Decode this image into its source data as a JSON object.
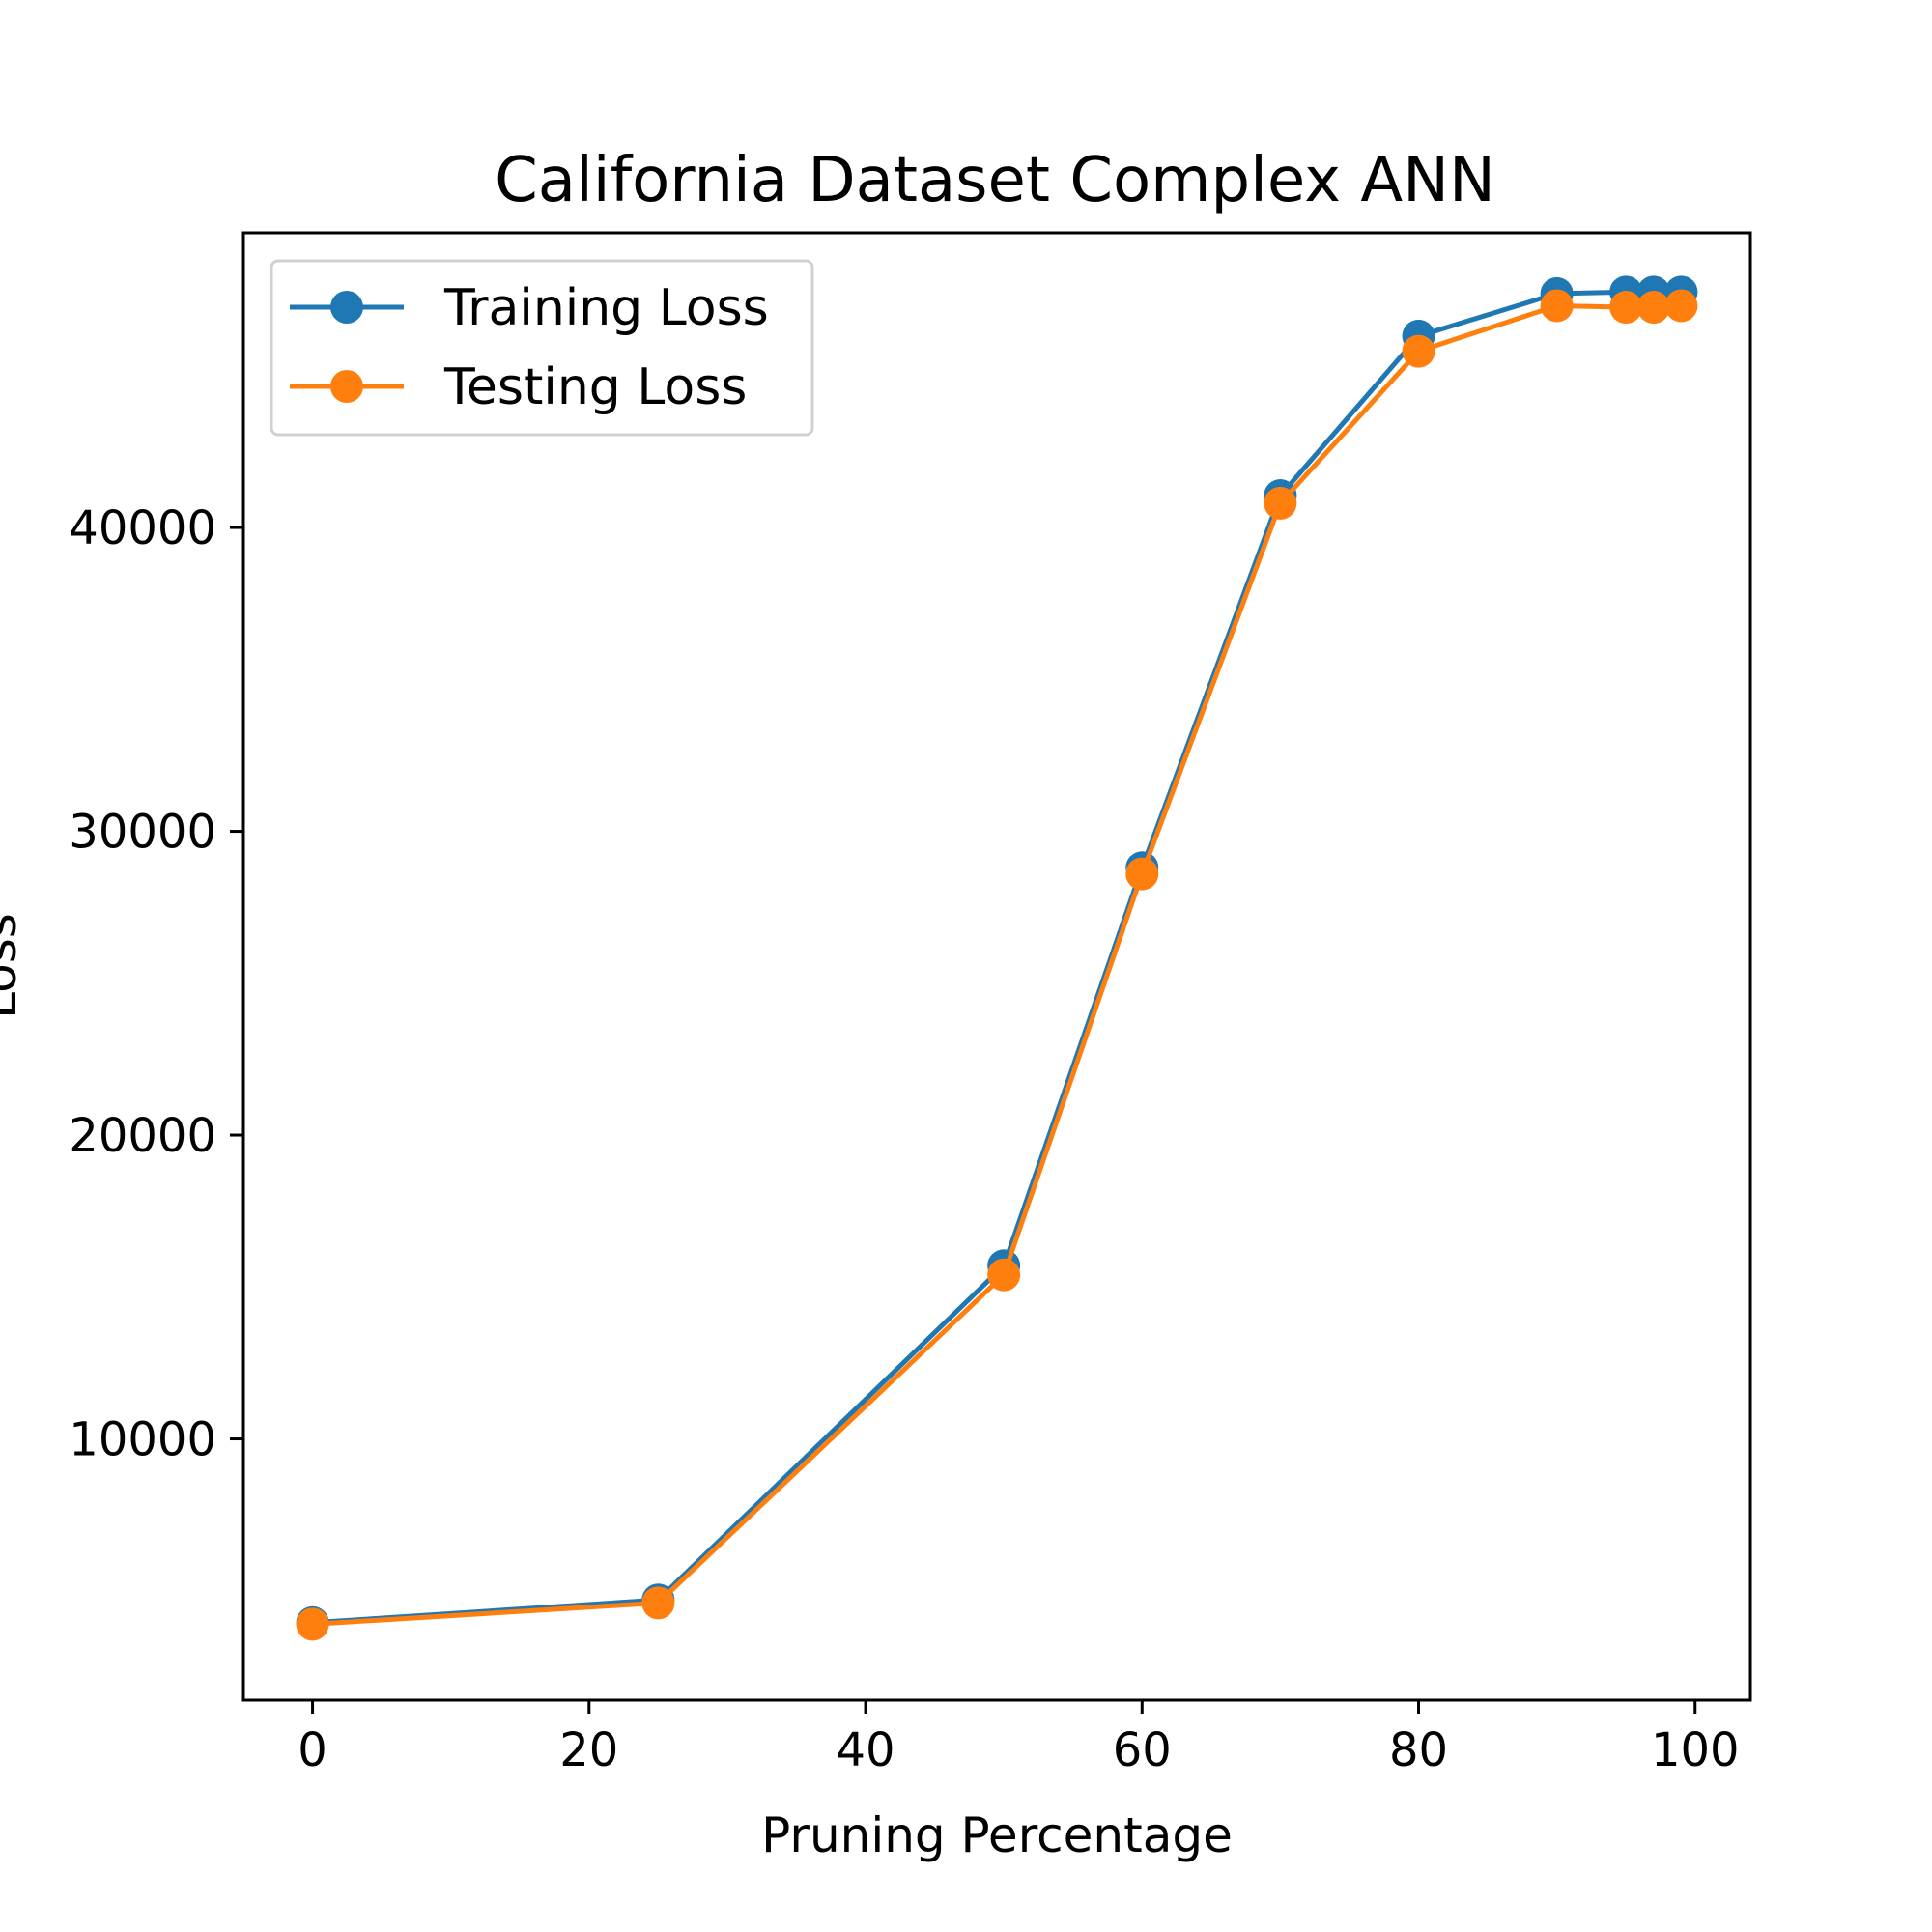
{
  "chart_data": {
    "type": "line",
    "title": "California Dataset Complex ANN",
    "xlabel": "Pruning Percentage",
    "ylabel": "Loss",
    "xlim": [
      -5,
      104
    ],
    "ylim": [
      1400,
      49700
    ],
    "xticks": [
      0,
      20,
      40,
      60,
      80,
      100
    ],
    "yticks": [
      10000,
      20000,
      30000,
      40000
    ],
    "grid": false,
    "legend_position": "upper-left",
    "x": [
      0,
      25,
      50,
      60,
      70,
      80,
      90,
      95,
      97,
      99
    ],
    "series": [
      {
        "name": "Training Loss",
        "color": "#1f77b4",
        "values": [
          3950,
          4700,
          15700,
          28800,
          41050,
          46300,
          47700,
          47750,
          47750,
          47750
        ]
      },
      {
        "name": "Testing Loss",
        "color": "#ff7f0e",
        "values": [
          3900,
          4600,
          15400,
          28600,
          40800,
          45800,
          47300,
          47250,
          47250,
          47300
        ]
      }
    ]
  }
}
